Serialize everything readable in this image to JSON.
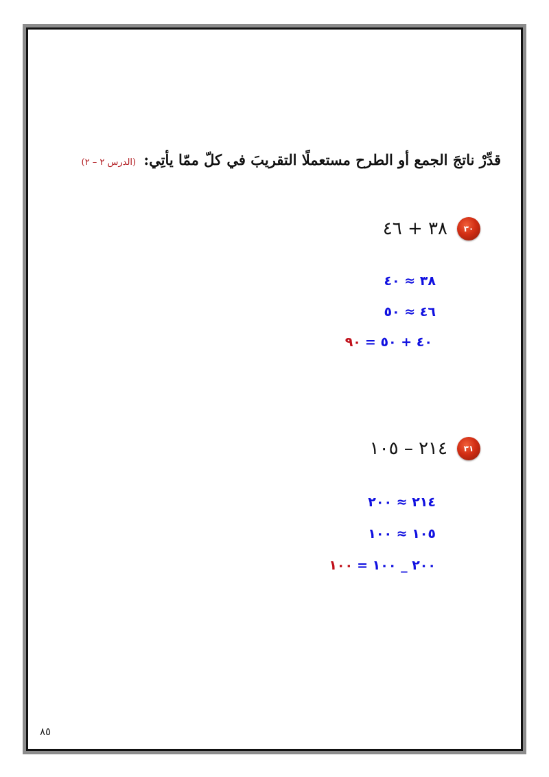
{
  "instruction": {
    "text": "قدِّرْ ناتجَ الجمع أو الطرح مستعملًا التقريبَ في كلّ ممّا يأتِي:",
    "lesson_ref": "(الدرس ٢ – ٢)"
  },
  "problems": [
    {
      "number": "٣٠",
      "expression": "٣٨ + ٤٦",
      "steps": [
        {
          "text": "٣٨ ≈ ٤٠",
          "result": ""
        },
        {
          "text": "٤٦ ≈ ٥٠",
          "result": ""
        },
        {
          "text": "٤٠ + ٥٠ =",
          "result": "٩٠"
        }
      ]
    },
    {
      "number": "٣١",
      "expression": "٢١٤ – ١٠٥",
      "steps": [
        {
          "text": "٢١٤ ≈ ٢٠٠",
          "result": ""
        },
        {
          "text": "١٠٥ ≈ ١٠٠",
          "result": ""
        },
        {
          "text": "٢٠٠ _ ١٠٠ =",
          "result": "١٠٠"
        }
      ]
    }
  ],
  "page_number": "٨٥",
  "colors": {
    "step": "#1010e0",
    "result": "#c0101a",
    "badge": "#d22e14",
    "lesson_ref": "#b0161b"
  }
}
